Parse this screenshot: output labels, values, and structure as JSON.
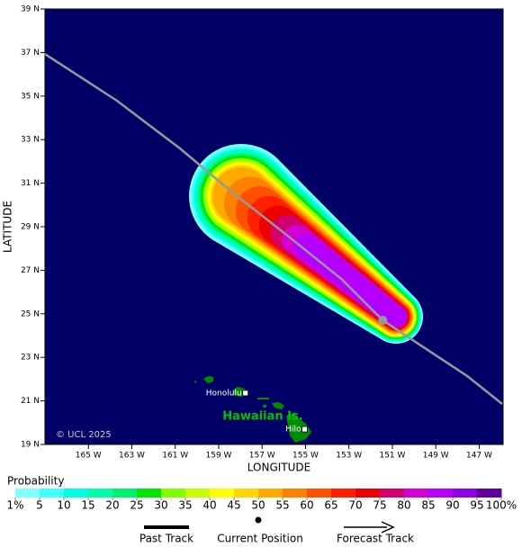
{
  "chart_data": {
    "type": "map",
    "xlabel": "LONGITUDE",
    "ylabel": "LATITUDE",
    "background": "#000066",
    "xlim": [
      -167,
      -145.9
    ],
    "ylim": [
      19,
      39
    ],
    "xticks": [
      {
        "value": -165,
        "label": "165 W"
      },
      {
        "value": -163,
        "label": "163 W"
      },
      {
        "value": -161,
        "label": "161 W"
      },
      {
        "value": -159,
        "label": "159 W"
      },
      {
        "value": -157,
        "label": "157 W"
      },
      {
        "value": -155,
        "label": "155 W"
      },
      {
        "value": -153,
        "label": "153 W"
      },
      {
        "value": -151,
        "label": "151 W"
      },
      {
        "value": -149,
        "label": "149 W"
      },
      {
        "value": -147,
        "label": "147 W"
      }
    ],
    "yticks": [
      {
        "value": 19,
        "label": "19 N"
      },
      {
        "value": 21,
        "label": "21 N"
      },
      {
        "value": 23,
        "label": "23 N"
      },
      {
        "value": 25,
        "label": "25 N"
      },
      {
        "value": 27,
        "label": "27 N"
      },
      {
        "value": 29,
        "label": "29 N"
      },
      {
        "value": 31,
        "label": "31 N"
      },
      {
        "value": 33,
        "label": "33 N"
      },
      {
        "value": 35,
        "label": "35 N"
      },
      {
        "value": 37,
        "label": "37 N"
      },
      {
        "value": 39,
        "label": "39 N"
      }
    ],
    "track": {
      "color": "#999999",
      "lon": [
        -167,
        -163.69,
        -160.79,
        -158.31,
        -155.83,
        -153.35,
        -151.44,
        -149.62,
        -147.55,
        -145.94
      ],
      "lat": [
        36.93,
        34.79,
        32.6,
        30.53,
        28.59,
        26.6,
        24.7,
        23.5,
        22.14,
        20.86
      ]
    },
    "current_position": {
      "lon": -151.44,
      "lat": 24.7
    },
    "places": [
      {
        "name": "Honolulu",
        "lon": -157.77,
        "lat": 21.36
      },
      {
        "name": "Hilo",
        "lon": -155.04,
        "lat": 19.7
      }
    ],
    "region_label": "Hawaiian Is.",
    "credit": "© UCL 2025",
    "colorbar": {
      "title": "Probability",
      "ticks": [
        {
          "value": 1,
          "label": "1%"
        },
        5,
        10,
        15,
        20,
        25,
        30,
        35,
        40,
        45,
        50,
        55,
        60,
        65,
        70,
        75,
        80,
        85,
        90,
        95,
        {
          "value": 100,
          "label": "100%"
        }
      ],
      "colors": [
        "#80ffff",
        "#40ffff",
        "#00ffe6",
        "#00ffaa",
        "#00f070",
        "#00e600",
        "#80ff00",
        "#c8ff00",
        "#ffff00",
        "#ffd700",
        "#ffaa00",
        "#ff8000",
        "#ff5000",
        "#ff2000",
        "#ee0000",
        "#d0006e",
        "#d200d2",
        "#b400ff",
        "#8c00e6",
        "#6400a0"
      ]
    },
    "legend": [
      "Past Track",
      "Current Position",
      "Forecast Track"
    ]
  }
}
